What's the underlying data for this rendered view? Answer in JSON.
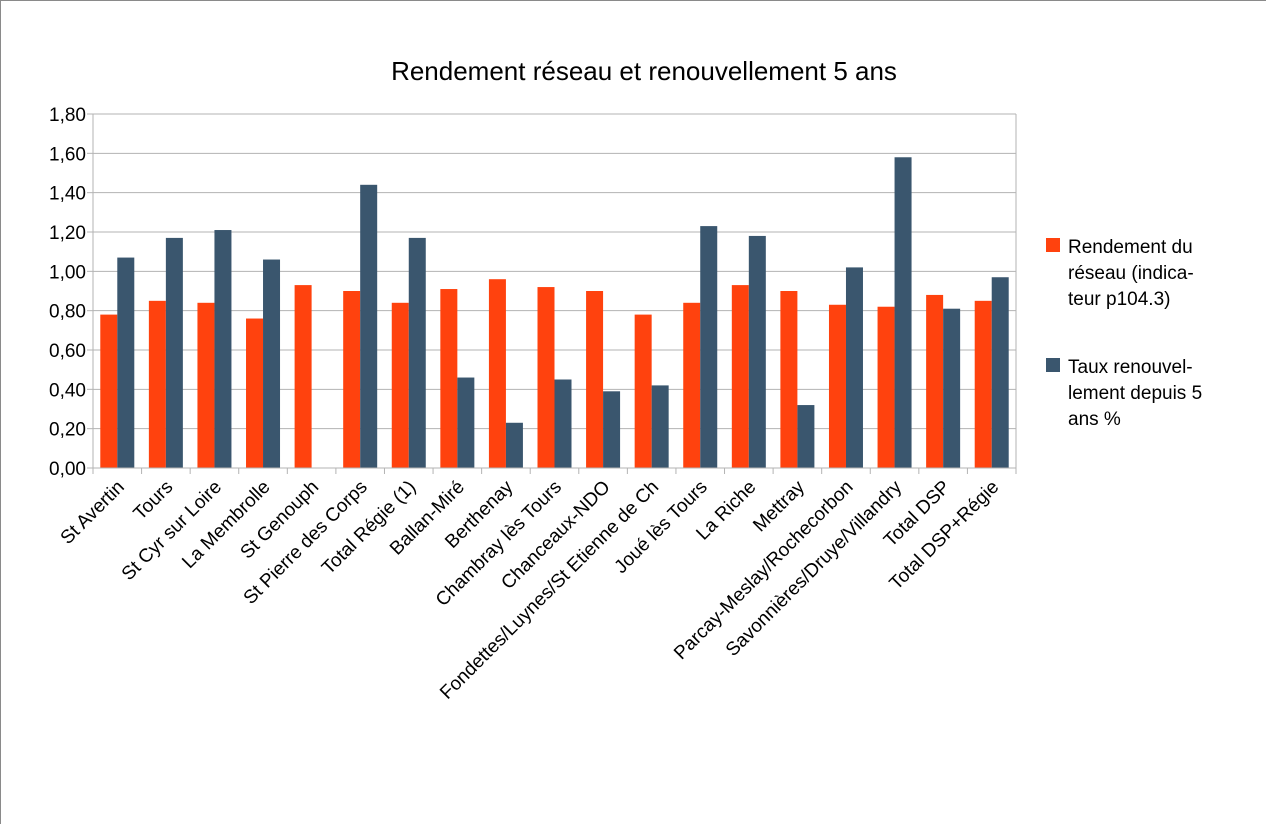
{
  "colors": {
    "rendement": "#ff420e",
    "taux": "#3a566e",
    "grid": "#b3b3b3",
    "axis": "#b3b3b3"
  },
  "chart_data": {
    "type": "bar",
    "title": "Rendement réseau et renouvellement 5 ans",
    "xlabel": "",
    "ylabel": "",
    "ylim": [
      0,
      1.8
    ],
    "yticks": [
      "0,00",
      "0,20",
      "0,40",
      "0,60",
      "0,80",
      "1,00",
      "1,20",
      "1,40",
      "1,60",
      "1,80"
    ],
    "grid": "horizontal",
    "legend_position": "right",
    "categories": [
      "St Avertin",
      "Tours",
      "St Cyr sur Loire",
      "La Membrolle",
      "St Genouph",
      "St Pierre des Corps",
      "Total Régie (1)",
      "Ballan-Miré",
      "Berthenay",
      "Chambray lès Tours",
      "Chanceaux-NDO",
      "Fondettes/Luynes/St Etienne de Ch",
      "Joué lès Tours",
      "La Riche",
      "Mettray",
      "Parcay-Meslay/Rochecorbon",
      "Savonnières/Druye/Villandry",
      "Total DSP",
      "Total DSP+Régie"
    ],
    "series": [
      {
        "name": "Rendement du réseau (indicateur p104.3)",
        "legend_lines": [
          "Rendement du",
          "réseau (indica-",
          "teur p104.3)"
        ],
        "values": [
          0.78,
          0.85,
          0.84,
          0.76,
          0.93,
          0.9,
          0.84,
          0.91,
          0.96,
          0.92,
          0.9,
          0.78,
          0.84,
          0.93,
          0.9,
          0.83,
          0.82,
          0.88,
          0.85
        ]
      },
      {
        "name": "Taux renouvellement depuis 5 ans %",
        "legend_lines": [
          "Taux renouvel-",
          "lement depuis 5",
          "ans %"
        ],
        "values": [
          1.07,
          1.17,
          1.21,
          1.06,
          0.0,
          1.44,
          1.17,
          0.46,
          0.23,
          0.45,
          0.39,
          0.42,
          1.23,
          1.18,
          0.32,
          1.02,
          1.58,
          0.81,
          0.97
        ]
      }
    ]
  }
}
